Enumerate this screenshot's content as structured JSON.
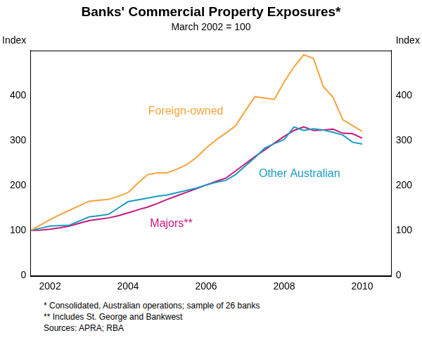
{
  "chart_data": {
    "type": "line",
    "title": "Banks' Commercial Property Exposures*",
    "subtitle": "March 2002 = 100",
    "ylabel": "Index",
    "y2label": "Index",
    "footnotes": [
      "*  Consolidated, Australian operations; sample of 26 banks",
      "** Includes St. George and Bankwest",
      "Sources: APRA; RBA"
    ],
    "categories": [
      null,
      null,
      "2002",
      null,
      null,
      null,
      null,
      null,
      null,
      null,
      "2004",
      null,
      null,
      null,
      null,
      null,
      null,
      null,
      "2006",
      null,
      null,
      null,
      null,
      null,
      null,
      null,
      "2008",
      null,
      null,
      null,
      null,
      null,
      null,
      null,
      "2010",
      null,
      null,
      null
    ],
    "series": [
      {
        "name": "Foreign-owned",
        "color": "#f8a33c",
        "values": [
          100,
          112,
          124,
          135,
          145,
          155,
          165,
          167,
          169,
          176,
          184,
          205,
          224,
          228,
          228,
          236,
          246,
          262,
          283,
          301,
          316,
          332,
          365,
          397,
          394,
          391,
          430,
          463,
          490,
          482,
          420,
          396,
          346,
          333,
          320,
          null,
          null,
          null
        ]
      },
      {
        "name": "Other Australian",
        "color": "#1a9cc2",
        "values": [
          100,
          105,
          110,
          111,
          112,
          121,
          130,
          133,
          136,
          150,
          164,
          168,
          172,
          176,
          179,
          184,
          189,
          194,
          201,
          207,
          211,
          224,
          243,
          262,
          283,
          293,
          302,
          330,
          322,
          326,
          323,
          318,
          312,
          296,
          292,
          null,
          null,
          null
        ]
      },
      {
        "name": "Majors**",
        "color": "#c8177e",
        "values": [
          100,
          101,
          103,
          106,
          110,
          116,
          122,
          125,
          128,
          133,
          139,
          146,
          152,
          160,
          169,
          177,
          185,
          193,
          201,
          209,
          216,
          232,
          248,
          264,
          279,
          294,
          309,
          322,
          330,
          322,
          323,
          325,
          316,
          315,
          305,
          null,
          null,
          null
        ]
      }
    ],
    "ylim": [
      0,
      500
    ],
    "yticks": [
      0,
      100,
      200,
      300,
      400
    ],
    "y2lim": [
      0,
      500
    ],
    "y2ticks": [
      0,
      100,
      200,
      300,
      400
    ],
    "grid": false
  }
}
